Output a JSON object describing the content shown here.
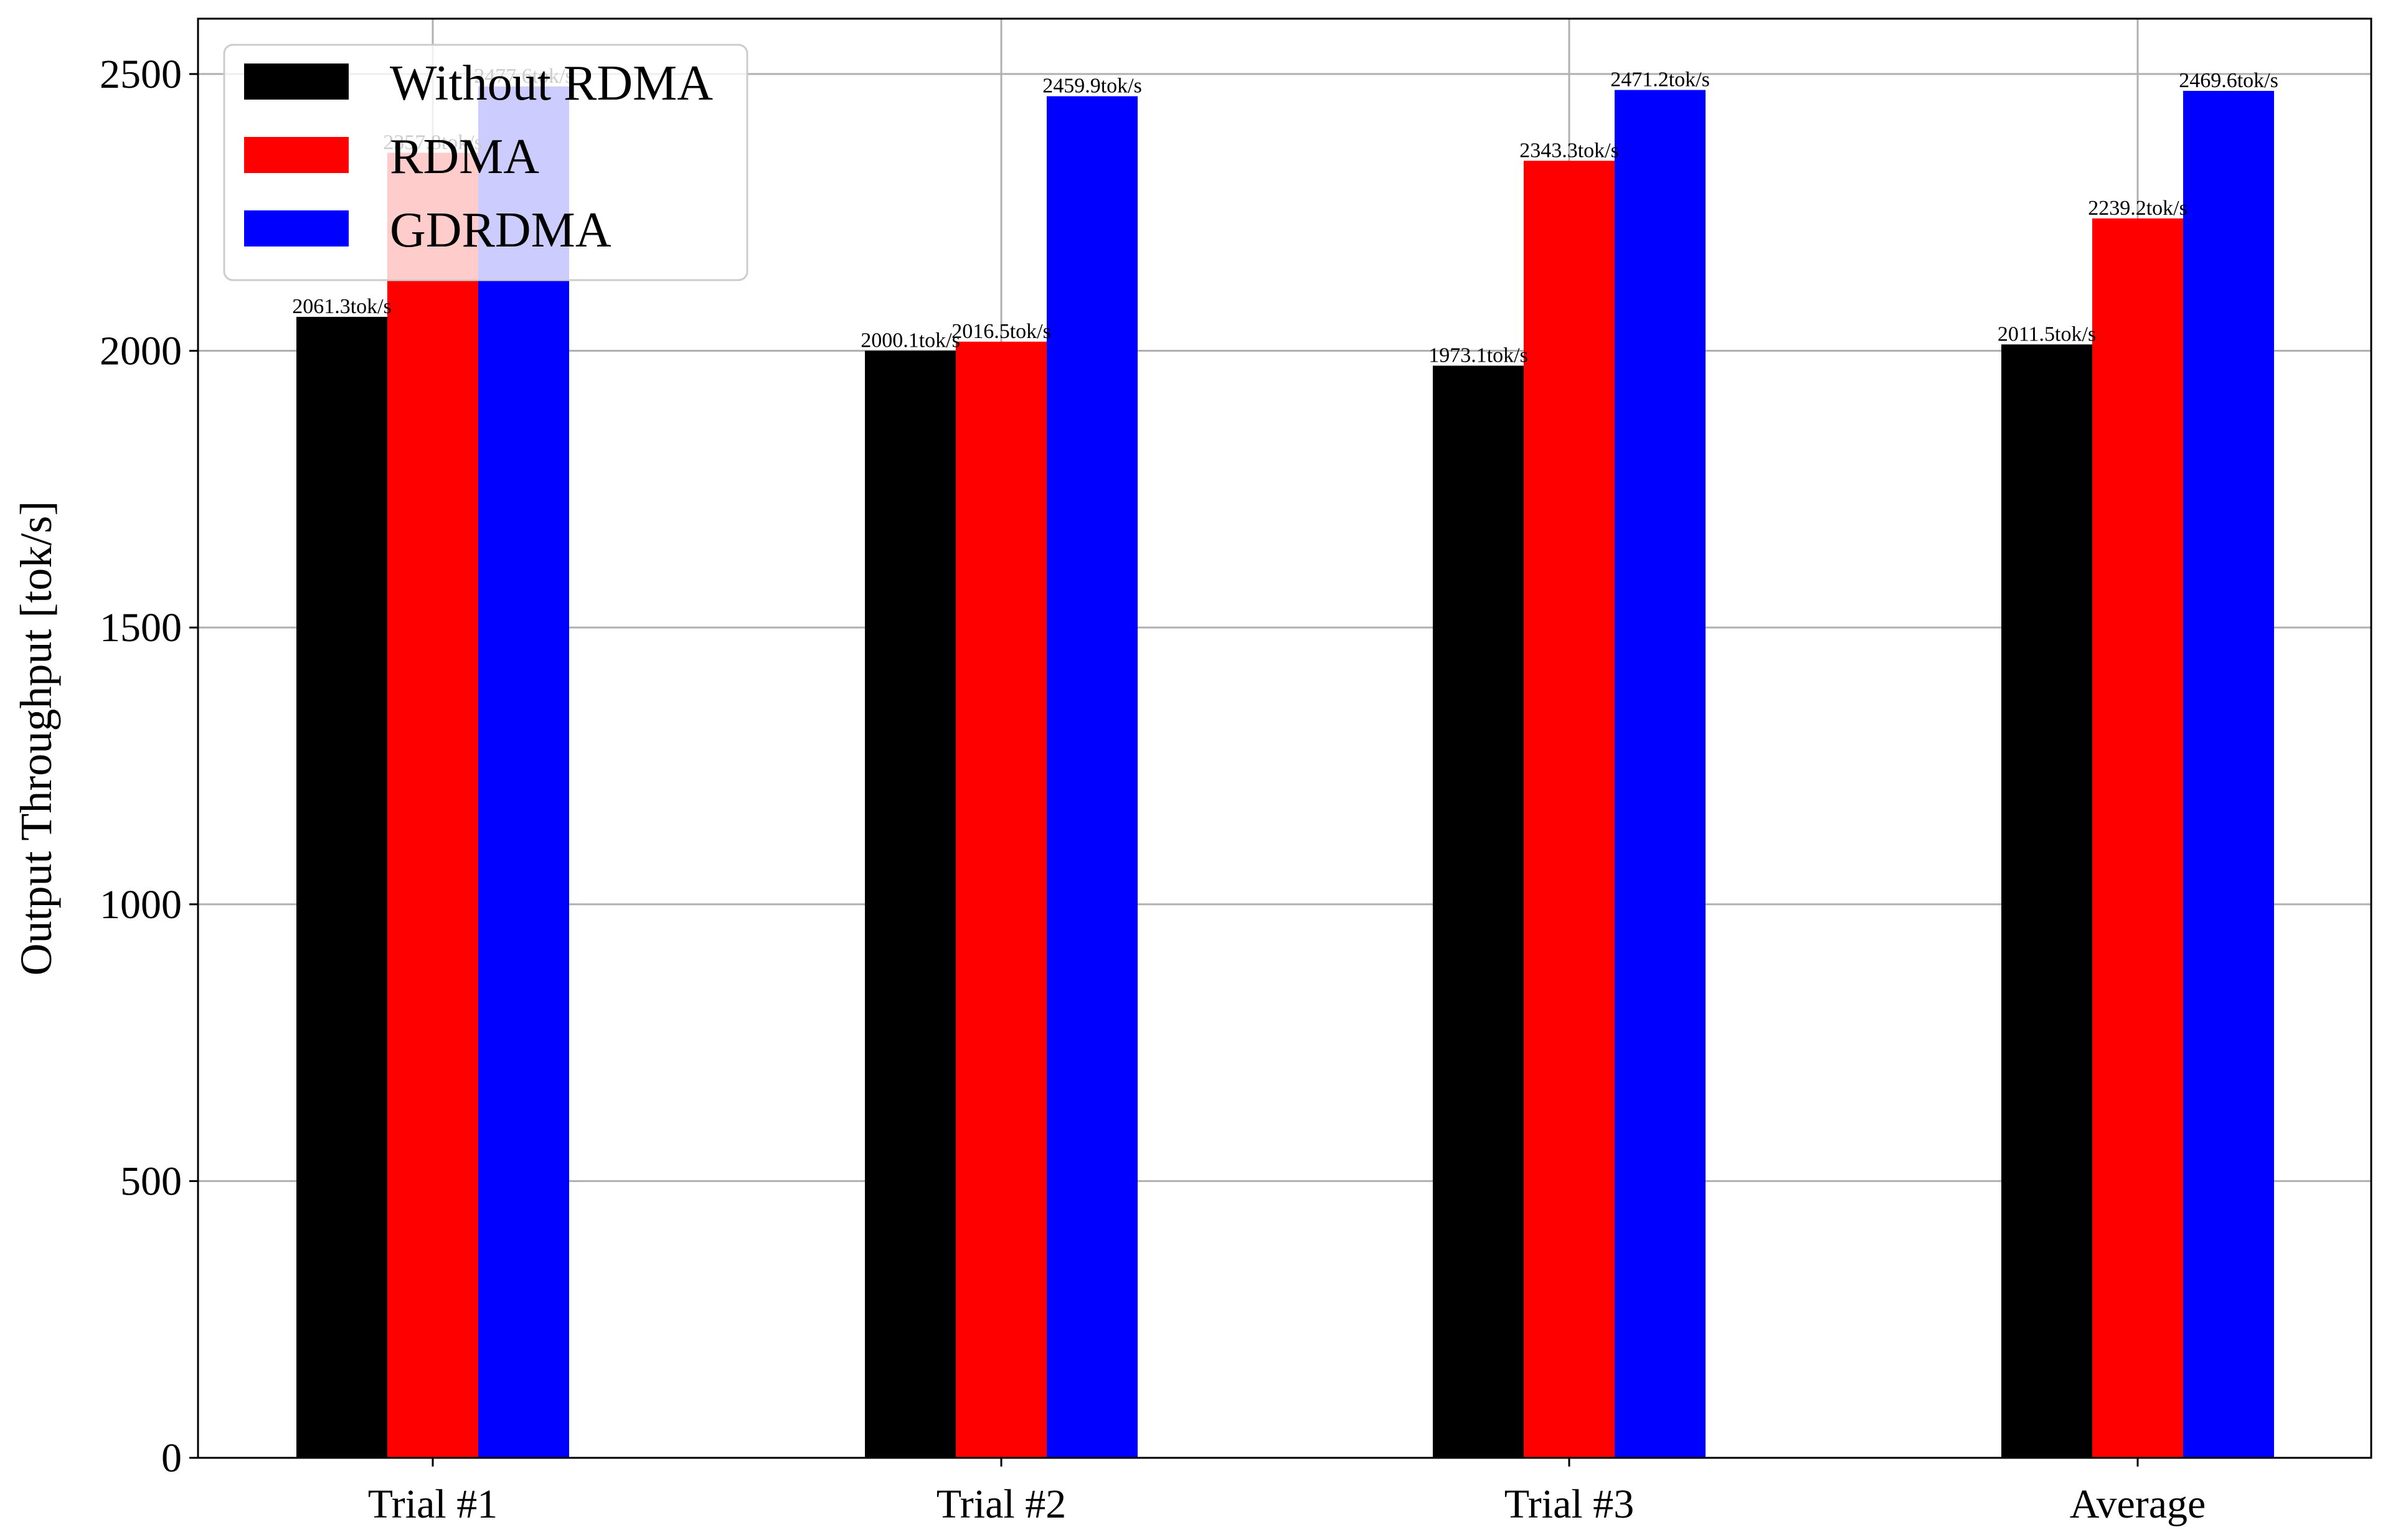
{
  "chart_data": {
    "type": "bar",
    "categories": [
      "Trial #1",
      "Trial #2",
      "Trial #3",
      "Average"
    ],
    "series": [
      {
        "name": "Without RDMA",
        "color": "#000000",
        "values": [
          2061.3,
          2000.1,
          1973.1,
          2011.5
        ]
      },
      {
        "name": "RDMA",
        "color": "#ff0000",
        "values": [
          2357.8,
          2016.5,
          2343.3,
          2239.2
        ]
      },
      {
        "name": "GDRDMA",
        "color": "#0000ff",
        "values": [
          2477.6,
          2459.9,
          2471.2,
          2469.6
        ]
      }
    ],
    "data_labels": [
      [
        "2061.3tok/s",
        "2000.1tok/s",
        "1973.1tok/s",
        "2011.5tok/s"
      ],
      [
        "2357.8tok/s",
        "2016.5tok/s",
        "2343.3tok/s",
        "2239.2tok/s"
      ],
      [
        "2477.6tok/s",
        "2459.9tok/s",
        "2471.2tok/s",
        "2469.6tok/s"
      ]
    ],
    "title": "",
    "xlabel": "",
    "ylabel": "Output Throughput [tok/s]",
    "ylim": [
      0,
      2600
    ],
    "yticks": [
      0,
      500,
      1000,
      1500,
      2000,
      2500
    ],
    "grid": true,
    "legend_position": "top-left"
  }
}
